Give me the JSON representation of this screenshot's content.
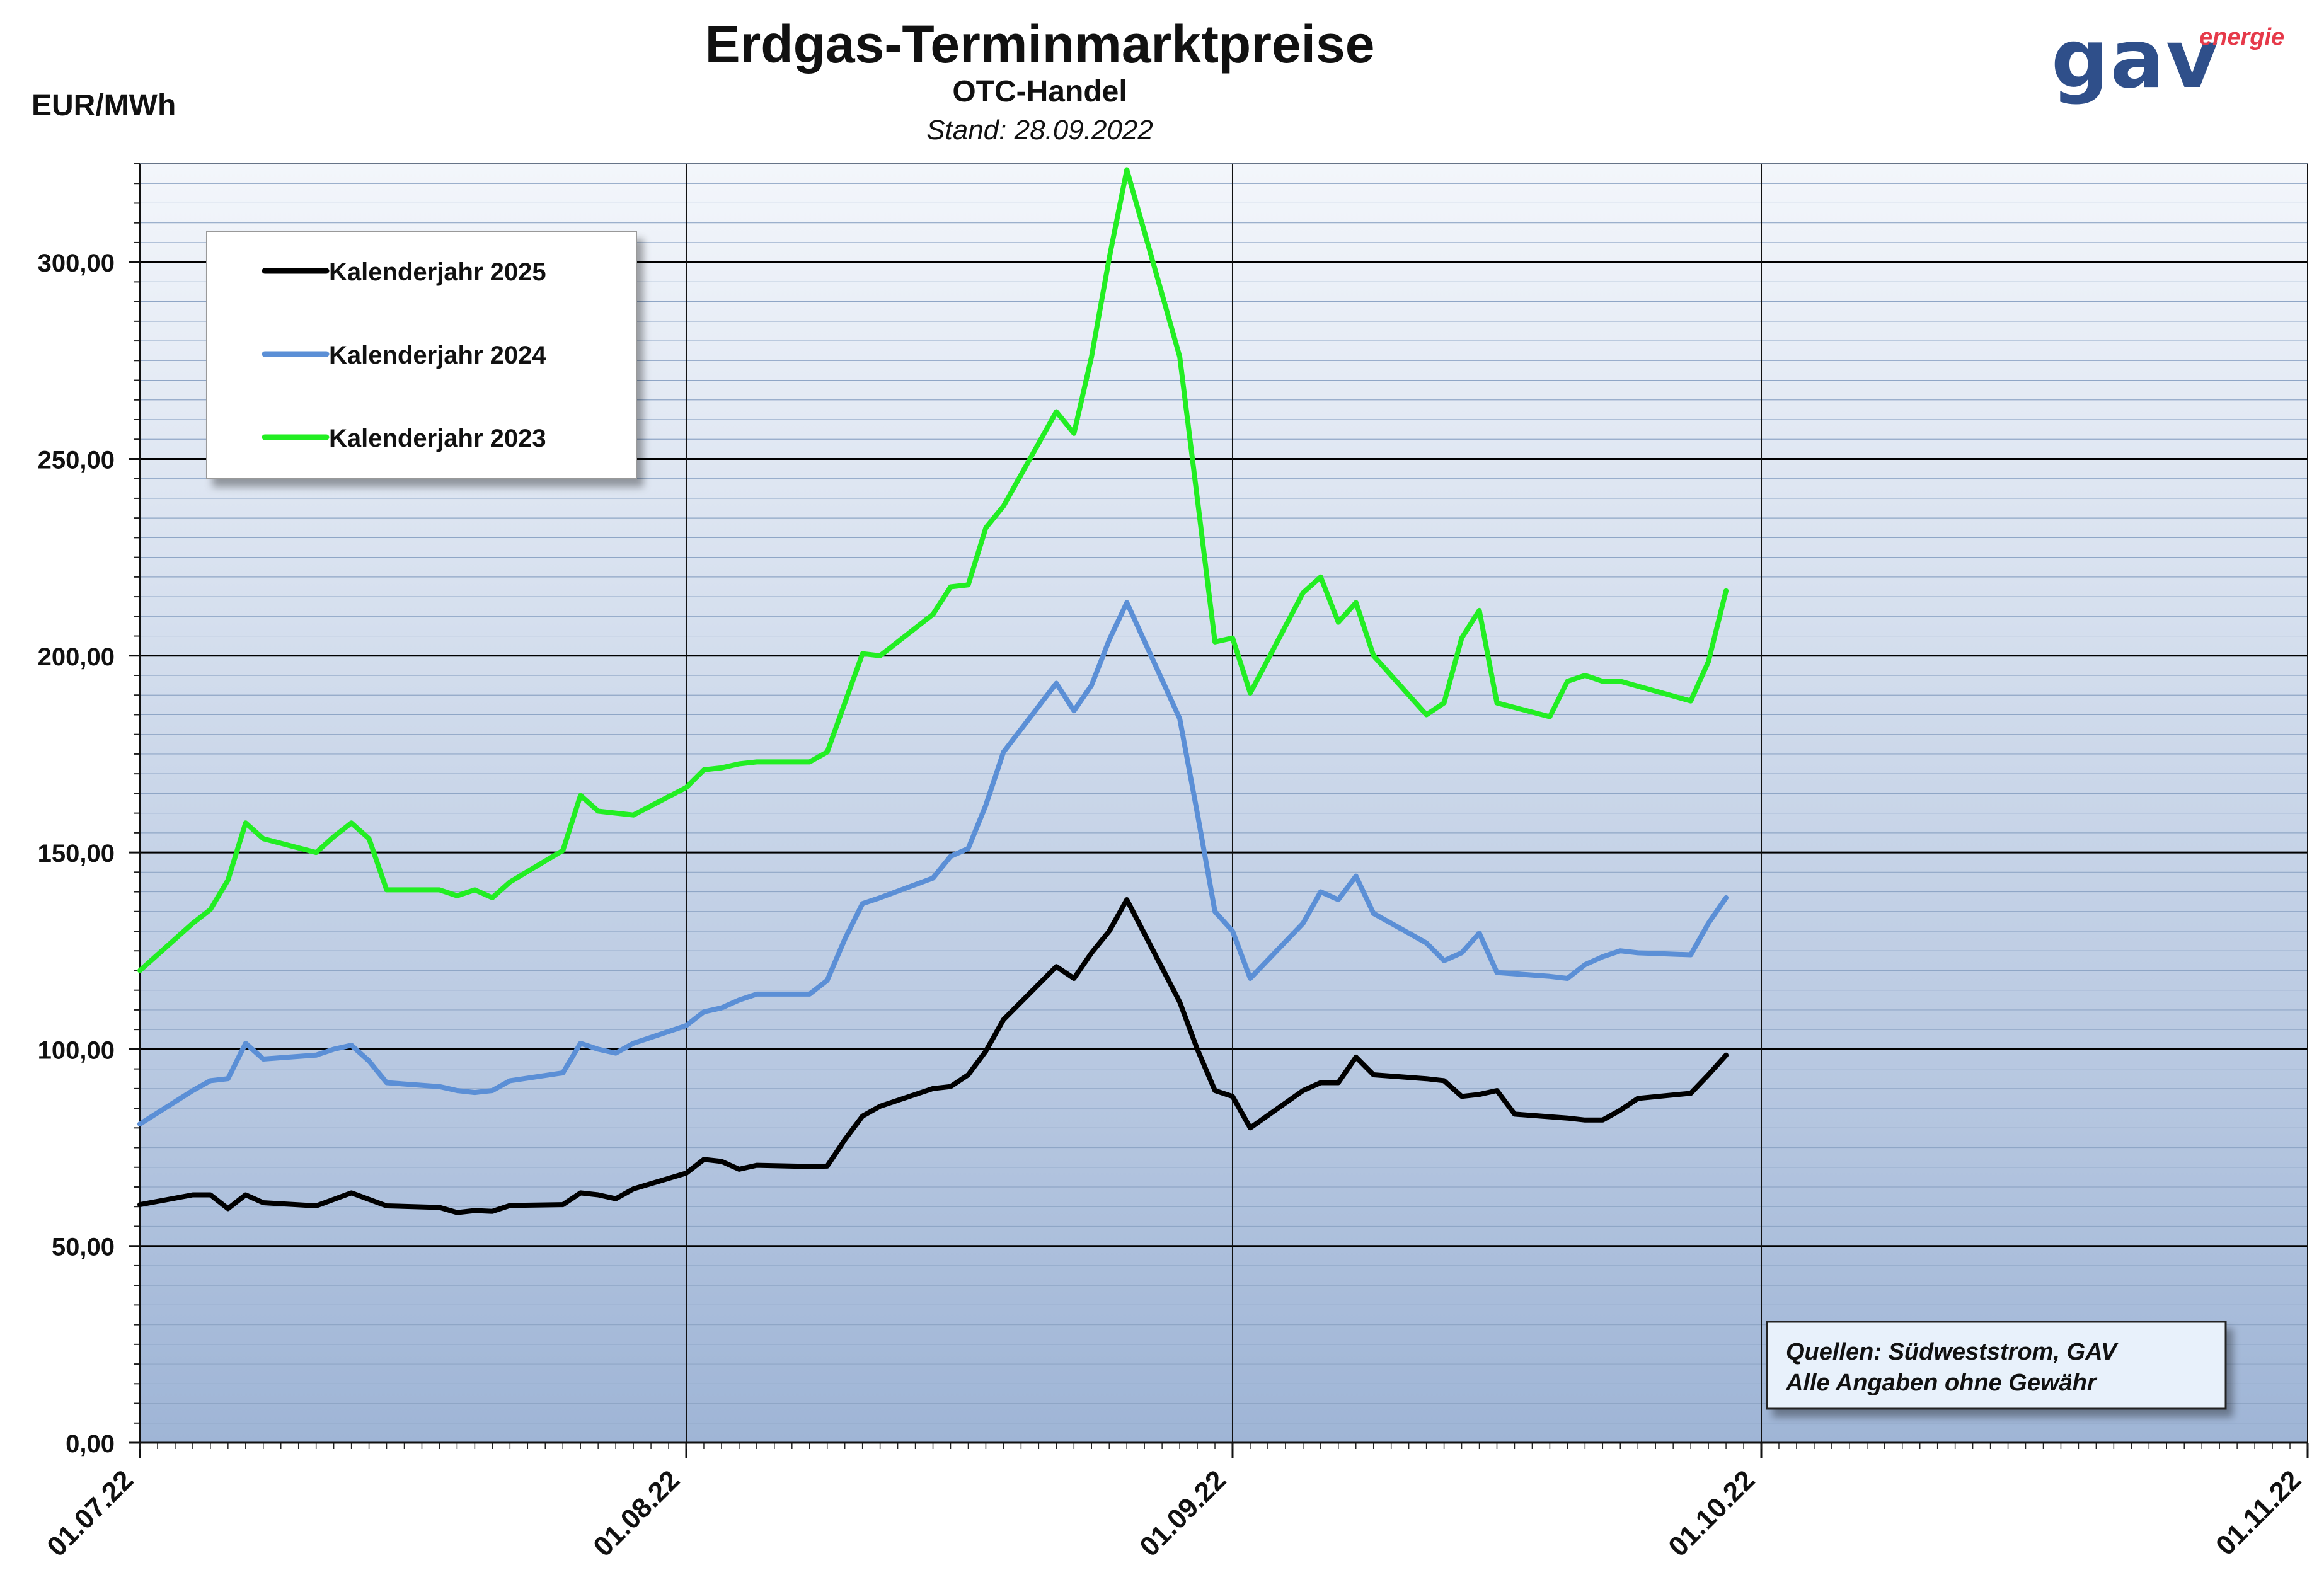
{
  "header": {
    "title": "Erdgas-Terminmarktpreise",
    "subtitle": "OTC-Handel",
    "stand": "Stand: 28.09.2022",
    "unit": "EUR/MWh"
  },
  "logo": {
    "main": "gav",
    "sup": "energie",
    "main_color": "#2f4f8a",
    "sup_color": "#e63a4a"
  },
  "source_box": {
    "line1": "Quellen: Südweststrom, GAV",
    "line2": "Alle Angaben ohne Gewähr"
  },
  "chart_data": {
    "type": "line",
    "title": "Erdgas-Terminmarktpreise",
    "ylabel": "EUR/MWh",
    "ylim": [
      0,
      325
    ],
    "yticks": [
      0,
      50,
      100,
      150,
      200,
      250,
      300
    ],
    "ytick_labels": [
      "0,00",
      "50,00",
      "100,00",
      "150,00",
      "200,00",
      "250,00",
      "300,00"
    ],
    "xlim": [
      "2022-07-01",
      "2022-11-01"
    ],
    "xticks": [
      "2022-07-01",
      "2022-08-01",
      "2022-09-01",
      "2022-10-01",
      "2022-11-01"
    ],
    "xtick_labels": [
      "01.07.22",
      "01.08.22",
      "01.09.22",
      "01.10.22",
      "01.11.22"
    ],
    "grid": true,
    "legend_position": "top-left",
    "series": [
      {
        "name": "Kalenderjahr 2025",
        "color": "#000000",
        "points": [
          [
            "2022-07-01",
            60.5
          ],
          [
            "2022-07-04",
            63.0
          ],
          [
            "2022-07-05",
            63.0
          ],
          [
            "2022-07-06",
            59.5
          ],
          [
            "2022-07-07",
            63.0
          ],
          [
            "2022-07-08",
            61.0
          ],
          [
            "2022-07-11",
            60.2
          ],
          [
            "2022-07-13",
            63.5
          ],
          [
            "2022-07-15",
            60.2
          ],
          [
            "2022-07-18",
            59.8
          ],
          [
            "2022-07-19",
            58.5
          ],
          [
            "2022-07-20",
            59.0
          ],
          [
            "2022-07-21",
            58.8
          ],
          [
            "2022-07-22",
            60.3
          ],
          [
            "2022-07-25",
            60.5
          ],
          [
            "2022-07-26",
            63.5
          ],
          [
            "2022-07-27",
            63.0
          ],
          [
            "2022-07-28",
            62.0
          ],
          [
            "2022-07-29",
            64.5
          ],
          [
            "2022-08-01",
            68.5
          ],
          [
            "2022-08-02",
            72.0
          ],
          [
            "2022-08-03",
            71.5
          ],
          [
            "2022-08-04",
            69.5
          ],
          [
            "2022-08-05",
            70.5
          ],
          [
            "2022-08-08",
            70.2
          ],
          [
            "2022-08-09",
            70.3
          ],
          [
            "2022-08-10",
            77.0
          ],
          [
            "2022-08-11",
            83.0
          ],
          [
            "2022-08-12",
            85.5
          ],
          [
            "2022-08-15",
            90.0
          ],
          [
            "2022-08-16",
            90.5
          ],
          [
            "2022-08-17",
            93.5
          ],
          [
            "2022-08-18",
            99.5
          ],
          [
            "2022-08-19",
            107.5
          ],
          [
            "2022-08-22",
            121.0
          ],
          [
            "2022-08-23",
            118.0
          ],
          [
            "2022-08-24",
            124.5
          ],
          [
            "2022-08-25",
            130.0
          ],
          [
            "2022-08-26",
            138.0
          ],
          [
            "2022-08-29",
            112.0
          ],
          [
            "2022-08-30",
            100.0
          ],
          [
            "2022-08-31",
            89.5
          ],
          [
            "2022-09-01",
            88.0
          ],
          [
            "2022-09-02",
            80.0
          ],
          [
            "2022-09-05",
            89.5
          ],
          [
            "2022-09-06",
            91.5
          ],
          [
            "2022-09-07",
            91.5
          ],
          [
            "2022-09-08",
            98.0
          ],
          [
            "2022-09-09",
            93.5
          ],
          [
            "2022-09-12",
            92.5
          ],
          [
            "2022-09-13",
            92.0
          ],
          [
            "2022-09-14",
            88.0
          ],
          [
            "2022-09-15",
            88.5
          ],
          [
            "2022-09-16",
            89.5
          ],
          [
            "2022-09-17",
            83.5
          ],
          [
            "2022-09-20",
            82.5
          ],
          [
            "2022-09-21",
            82.0
          ],
          [
            "2022-09-22",
            82.0
          ],
          [
            "2022-09-23",
            84.5
          ],
          [
            "2022-09-24",
            87.5
          ],
          [
            "2022-09-27",
            88.8
          ],
          [
            "2022-09-28",
            93.5
          ],
          [
            "2022-09-29",
            98.5
          ]
        ]
      },
      {
        "name": "Kalenderjahr 2024",
        "color": "#5b8fd6",
        "points": [
          [
            "2022-07-01",
            81.0
          ],
          [
            "2022-07-04",
            89.5
          ],
          [
            "2022-07-05",
            92.0
          ],
          [
            "2022-07-06",
            92.5
          ],
          [
            "2022-07-07",
            101.5
          ],
          [
            "2022-07-08",
            97.5
          ],
          [
            "2022-07-11",
            98.5
          ],
          [
            "2022-07-12",
            100.0
          ],
          [
            "2022-07-13",
            101.0
          ],
          [
            "2022-07-14",
            97.0
          ],
          [
            "2022-07-15",
            91.5
          ],
          [
            "2022-07-18",
            90.5
          ],
          [
            "2022-07-19",
            89.5
          ],
          [
            "2022-07-20",
            89.0
          ],
          [
            "2022-07-21",
            89.5
          ],
          [
            "2022-07-22",
            92.0
          ],
          [
            "2022-07-25",
            94.0
          ],
          [
            "2022-07-26",
            101.5
          ],
          [
            "2022-07-27",
            100.0
          ],
          [
            "2022-07-28",
            99.0
          ],
          [
            "2022-07-29",
            101.5
          ],
          [
            "2022-08-01",
            106.0
          ],
          [
            "2022-08-02",
            109.5
          ],
          [
            "2022-08-03",
            110.5
          ],
          [
            "2022-08-04",
            112.5
          ],
          [
            "2022-08-05",
            114.0
          ],
          [
            "2022-08-08",
            114.0
          ],
          [
            "2022-08-09",
            117.5
          ],
          [
            "2022-08-10",
            128.0
          ],
          [
            "2022-08-11",
            137.0
          ],
          [
            "2022-08-12",
            138.5
          ],
          [
            "2022-08-15",
            143.5
          ],
          [
            "2022-08-16",
            149.0
          ],
          [
            "2022-08-17",
            151.0
          ],
          [
            "2022-08-18",
            162.0
          ],
          [
            "2022-08-19",
            175.5
          ],
          [
            "2022-08-22",
            193.0
          ],
          [
            "2022-08-23",
            186.0
          ],
          [
            "2022-08-24",
            192.5
          ],
          [
            "2022-08-25",
            204.0
          ],
          [
            "2022-08-26",
            213.5
          ],
          [
            "2022-08-29",
            184.0
          ],
          [
            "2022-08-30",
            160.0
          ],
          [
            "2022-08-31",
            135.0
          ],
          [
            "2022-09-01",
            130.0
          ],
          [
            "2022-09-02",
            118.0
          ],
          [
            "2022-09-05",
            132.0
          ],
          [
            "2022-09-06",
            140.0
          ],
          [
            "2022-09-07",
            138.0
          ],
          [
            "2022-09-08",
            144.0
          ],
          [
            "2022-09-09",
            134.5
          ],
          [
            "2022-09-12",
            127.0
          ],
          [
            "2022-09-13",
            122.5
          ],
          [
            "2022-09-14",
            124.5
          ],
          [
            "2022-09-15",
            129.5
          ],
          [
            "2022-09-16",
            119.5
          ],
          [
            "2022-09-19",
            118.5
          ],
          [
            "2022-09-20",
            118.0
          ],
          [
            "2022-09-21",
            121.5
          ],
          [
            "2022-09-22",
            123.5
          ],
          [
            "2022-09-23",
            125.0
          ],
          [
            "2022-09-24",
            124.5
          ],
          [
            "2022-09-27",
            124.0
          ],
          [
            "2022-09-28",
            132.0
          ],
          [
            "2022-09-29",
            138.5
          ]
        ]
      },
      {
        "name": "Kalenderjahr 2023",
        "color": "#22ee22",
        "points": [
          [
            "2022-07-01",
            120.0
          ],
          [
            "2022-07-04",
            132.0
          ],
          [
            "2022-07-05",
            135.5
          ],
          [
            "2022-07-06",
            143.0
          ],
          [
            "2022-07-07",
            157.5
          ],
          [
            "2022-07-08",
            153.5
          ],
          [
            "2022-07-11",
            150.0
          ],
          [
            "2022-07-12",
            154.0
          ],
          [
            "2022-07-13",
            157.5
          ],
          [
            "2022-07-14",
            153.5
          ],
          [
            "2022-07-15",
            140.5
          ],
          [
            "2022-07-18",
            140.5
          ],
          [
            "2022-07-19",
            139.0
          ],
          [
            "2022-07-20",
            140.5
          ],
          [
            "2022-07-21",
            138.5
          ],
          [
            "2022-07-22",
            142.5
          ],
          [
            "2022-07-25",
            150.5
          ],
          [
            "2022-07-26",
            164.5
          ],
          [
            "2022-07-27",
            160.5
          ],
          [
            "2022-07-29",
            159.5
          ],
          [
            "2022-08-01",
            166.5
          ],
          [
            "2022-08-02",
            171.0
          ],
          [
            "2022-08-03",
            171.5
          ],
          [
            "2022-08-04",
            172.5
          ],
          [
            "2022-08-05",
            173.0
          ],
          [
            "2022-08-08",
            173.0
          ],
          [
            "2022-08-09",
            175.5
          ],
          [
            "2022-08-10",
            188.0
          ],
          [
            "2022-08-11",
            200.5
          ],
          [
            "2022-08-12",
            200.0
          ],
          [
            "2022-08-15",
            210.5
          ],
          [
            "2022-08-16",
            217.5
          ],
          [
            "2022-08-17",
            218.0
          ],
          [
            "2022-08-18",
            232.5
          ],
          [
            "2022-08-19",
            238.0
          ],
          [
            "2022-08-22",
            262.0
          ],
          [
            "2022-08-23",
            256.5
          ],
          [
            "2022-08-24",
            276.0
          ],
          [
            "2022-08-25",
            301.0
          ],
          [
            "2022-08-26",
            323.5
          ],
          [
            "2022-08-29",
            276.0
          ],
          [
            "2022-08-30",
            240.0
          ],
          [
            "2022-08-31",
            203.5
          ],
          [
            "2022-09-01",
            204.5
          ],
          [
            "2022-09-02",
            190.5
          ],
          [
            "2022-09-05",
            216.0
          ],
          [
            "2022-09-06",
            220.0
          ],
          [
            "2022-09-07",
            208.5
          ],
          [
            "2022-09-08",
            213.5
          ],
          [
            "2022-09-09",
            200.0
          ],
          [
            "2022-09-12",
            185.0
          ],
          [
            "2022-09-13",
            188.0
          ],
          [
            "2022-09-14",
            204.5
          ],
          [
            "2022-09-15",
            211.5
          ],
          [
            "2022-09-16",
            188.0
          ],
          [
            "2022-09-19",
            184.5
          ],
          [
            "2022-09-20",
            193.5
          ],
          [
            "2022-09-21",
            195.0
          ],
          [
            "2022-09-22",
            193.5
          ],
          [
            "2022-09-23",
            193.5
          ],
          [
            "2022-09-27",
            188.5
          ],
          [
            "2022-09-28",
            198.5
          ],
          [
            "2022-09-29",
            216.5
          ]
        ]
      }
    ]
  }
}
